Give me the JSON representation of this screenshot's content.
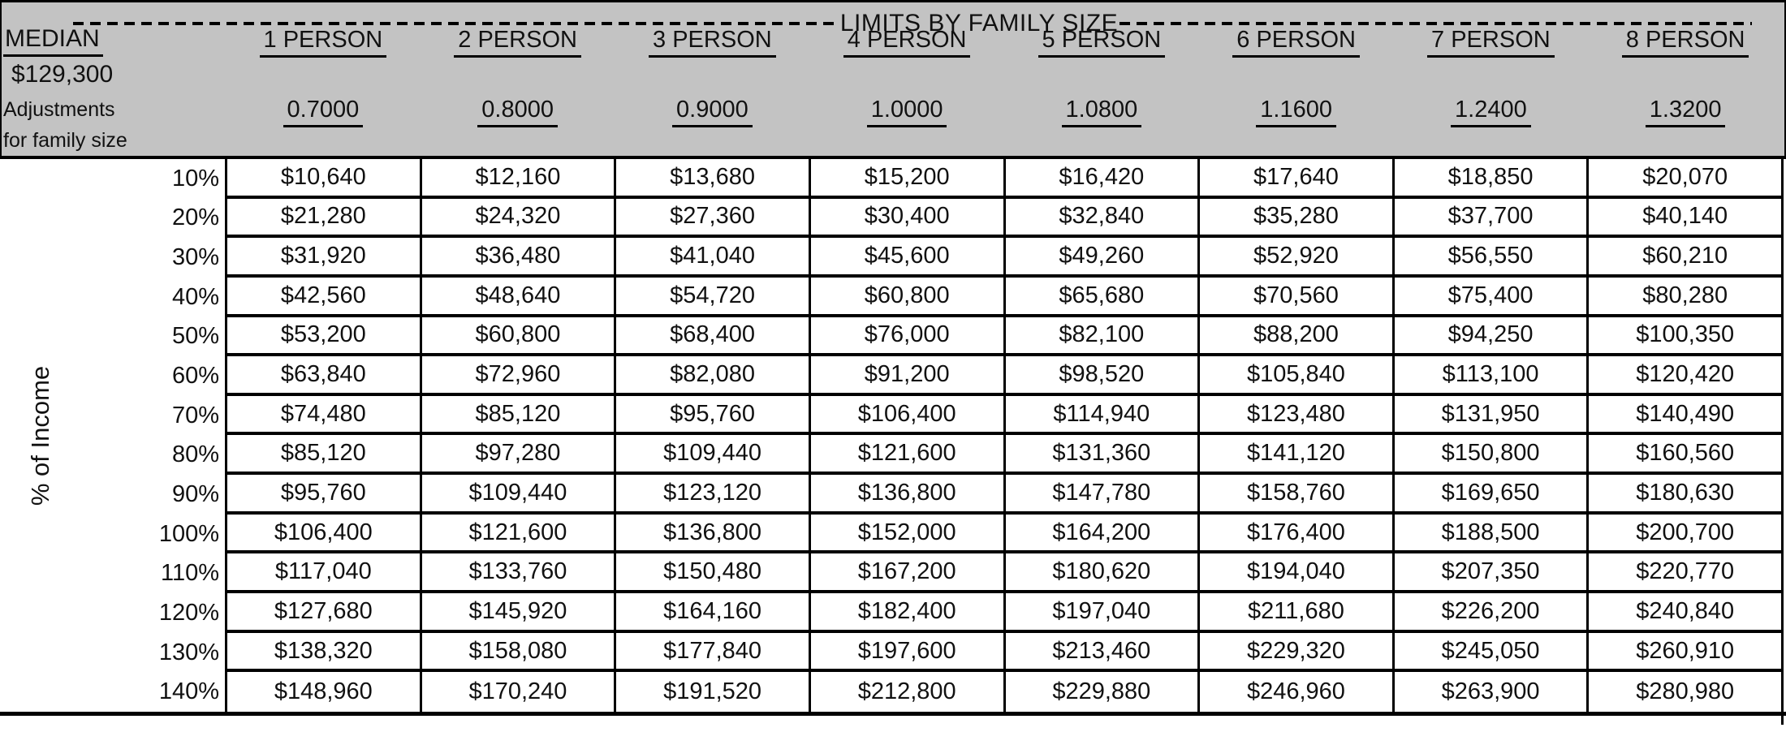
{
  "colors": {
    "header_bg": "#c3c3c3",
    "border": "#000000",
    "body_bg": "#ffffff",
    "text": "#111111"
  },
  "header": {
    "band_title": "LIMITS BY FAMILY SIZE",
    "median_label": "MEDIAN",
    "median_value": "$129,300",
    "adjustments_line1": "Adjustments",
    "adjustments_line2": "for family size",
    "columns": [
      {
        "label": "1 PERSON",
        "factor": "0.7000"
      },
      {
        "label": "2 PERSON",
        "factor": "0.8000"
      },
      {
        "label": "3 PERSON",
        "factor": "0.9000"
      },
      {
        "label": "4 PERSON",
        "factor": "1.0000"
      },
      {
        "label": "5 PERSON",
        "factor": "1.0800"
      },
      {
        "label": "6 PERSON",
        "factor": "1.1600"
      },
      {
        "label": "7 PERSON",
        "factor": "1.2400"
      },
      {
        "label": "8 PERSON",
        "factor": "1.3200"
      }
    ]
  },
  "body": {
    "y_axis_label": "% of Income",
    "rows": [
      {
        "pct": "10%",
        "values": [
          "$10,640",
          "$12,160",
          "$13,680",
          "$15,200",
          "$16,420",
          "$17,640",
          "$18,850",
          "$20,070"
        ]
      },
      {
        "pct": "20%",
        "values": [
          "$21,280",
          "$24,320",
          "$27,360",
          "$30,400",
          "$32,840",
          "$35,280",
          "$37,700",
          "$40,140"
        ]
      },
      {
        "pct": "30%",
        "values": [
          "$31,920",
          "$36,480",
          "$41,040",
          "$45,600",
          "$49,260",
          "$52,920",
          "$56,550",
          "$60,210"
        ]
      },
      {
        "pct": "40%",
        "values": [
          "$42,560",
          "$48,640",
          "$54,720",
          "$60,800",
          "$65,680",
          "$70,560",
          "$75,400",
          "$80,280"
        ]
      },
      {
        "pct": "50%",
        "values": [
          "$53,200",
          "$60,800",
          "$68,400",
          "$76,000",
          "$82,100",
          "$88,200",
          "$94,250",
          "$100,350"
        ]
      },
      {
        "pct": "60%",
        "values": [
          "$63,840",
          "$72,960",
          "$82,080",
          "$91,200",
          "$98,520",
          "$105,840",
          "$113,100",
          "$120,420"
        ]
      },
      {
        "pct": "70%",
        "values": [
          "$74,480",
          "$85,120",
          "$95,760",
          "$106,400",
          "$114,940",
          "$123,480",
          "$131,950",
          "$140,490"
        ]
      },
      {
        "pct": "80%",
        "values": [
          "$85,120",
          "$97,280",
          "$109,440",
          "$121,600",
          "$131,360",
          "$141,120",
          "$150,800",
          "$160,560"
        ]
      },
      {
        "pct": "90%",
        "values": [
          "$95,760",
          "$109,440",
          "$123,120",
          "$136,800",
          "$147,780",
          "$158,760",
          "$169,650",
          "$180,630"
        ]
      },
      {
        "pct": "100%",
        "values": [
          "$106,400",
          "$121,600",
          "$136,800",
          "$152,000",
          "$164,200",
          "$176,400",
          "$188,500",
          "$200,700"
        ]
      },
      {
        "pct": "110%",
        "values": [
          "$117,040",
          "$133,760",
          "$150,480",
          "$167,200",
          "$180,620",
          "$194,040",
          "$207,350",
          "$220,770"
        ]
      },
      {
        "pct": "120%",
        "values": [
          "$127,680",
          "$145,920",
          "$164,160",
          "$182,400",
          "$197,040",
          "$211,680",
          "$226,200",
          "$240,840"
        ]
      },
      {
        "pct": "130%",
        "values": [
          "$138,320",
          "$158,080",
          "$177,840",
          "$197,600",
          "$213,460",
          "$229,320",
          "$245,050",
          "$260,910"
        ]
      },
      {
        "pct": "140%",
        "values": [
          "$148,960",
          "$170,240",
          "$191,520",
          "$212,800",
          "$229,880",
          "$246,960",
          "$263,900",
          "$280,980"
        ]
      }
    ]
  }
}
